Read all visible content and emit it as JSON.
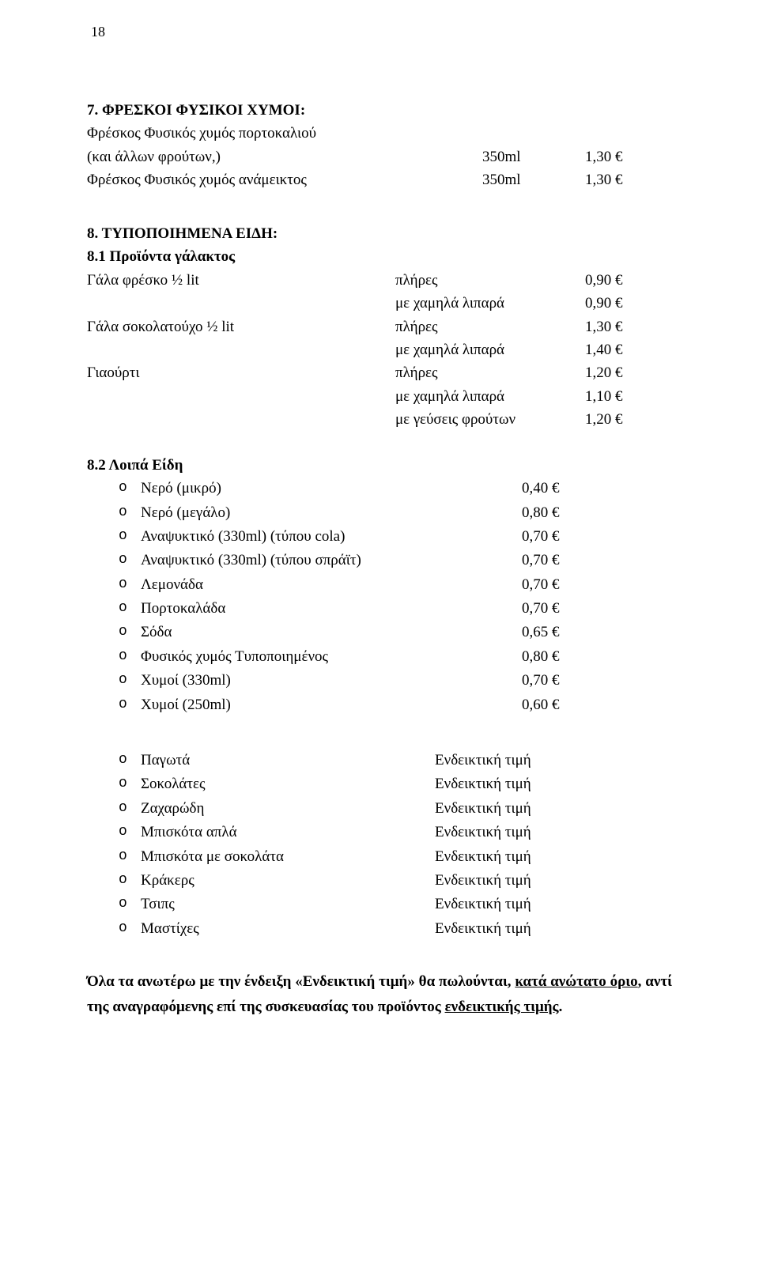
{
  "page_number": "18",
  "s7": {
    "title": "7. ΦΡΕΣΚΟΙ ΦΥΣΙΚΟΙ ΧΥΜΟΙ:",
    "r1_label": "Φρέσκος Φυσικός χυμός πορτοκαλιού",
    "r1_note": "(και άλλων φρούτων,)",
    "r1_size": "350ml",
    "r1_price": "1,30 €",
    "r2_label": "Φρέσκος Φυσικός χυμός ανάμεικτος",
    "r2_size": "350ml",
    "r2_price": "1,30 €"
  },
  "s8": {
    "title": "8. ΤΥΠΟΠΟΙΗΜΕΝΑ ΕΙΔΗ:",
    "s81_title": "8.1 Προϊόντα γάλακτος",
    "s82_title": "8.2 Λοιπά Είδη",
    "milk1_label": "Γάλα φρέσκο ½ lit",
    "milk2_label": "Γάλα σοκολατούχο ½ lit",
    "yog_label": "Γιαούρτι",
    "full": "πλήρες",
    "lowfat": "με χαμηλά λιπαρά",
    "fruit": "με γεύσεις φρούτων",
    "p090": "0,90 €",
    "p130": "1,30 €",
    "p140": "1,40 €",
    "p120": "1,20 €",
    "p110": "1,10 €"
  },
  "other": [
    {
      "label": "Νερό (μικρό)",
      "val": "0,40 €"
    },
    {
      "label": "Νερό (μεγάλο)",
      "val": "0,80 €"
    },
    {
      "label": "Αναψυκτικό (330ml) (τύπου cola)",
      "val": "0,70 €"
    },
    {
      "label": "Αναψυκτικό (330ml) (τύπου σπράϊτ)",
      "val": "0,70 €"
    },
    {
      "label": "Λεμονάδα",
      "val": "0,70 €"
    },
    {
      "label": "Πορτοκαλάδα",
      "val": "0,70 €"
    },
    {
      "label": "Σόδα",
      "val": "0,65 €"
    },
    {
      "label": "Φυσικός χυμός Τυποποιημένος",
      "val": "0,80 €"
    },
    {
      "label": "Χυμοί (330ml)",
      "val": "0,70 €"
    },
    {
      "label": "Χυμοί (250ml)",
      "val": "0,60 €"
    }
  ],
  "ind_label": "Ενδεικτική τιμή",
  "indicative": [
    "Παγωτά",
    "Σοκολάτες",
    "Ζαχαρώδη",
    "Μπισκότα απλά",
    "Μπισκότα με σοκολάτα",
    "Κράκερς",
    "Τσιπς",
    "Μαστίχες"
  ],
  "para": {
    "t1": "Όλα τα ανωτέρω με την ένδειξη «Ενδεικτική τιμή» θα πωλούνται, ",
    "t2": "κατά ανώτατο όριο",
    "t3": ", αντί της αναγραφόμενης επί της συσκευασίας του προϊόντος ",
    "t4": "ενδεικτικής τιμής",
    "t5": "."
  }
}
